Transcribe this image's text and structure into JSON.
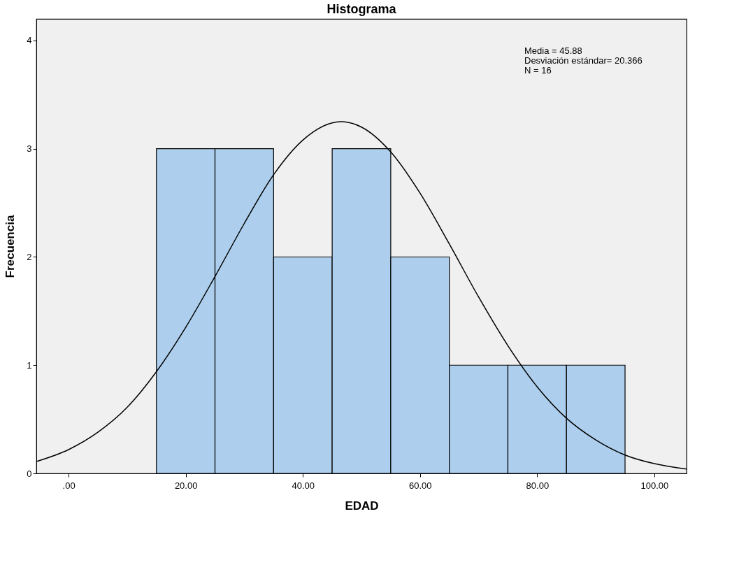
{
  "chart_data": {
    "type": "histogram",
    "title": "Histograma",
    "xlabel": "EDAD",
    "ylabel": "Frecuencia",
    "series": [
      {
        "color": "#adcfed",
        "bins": [
          15,
          25,
          35,
          45,
          55,
          65,
          75,
          85,
          95
        ],
        "values": [
          3,
          3,
          2,
          3,
          2,
          1,
          1,
          1
        ]
      },
      {
        "type": "line",
        "color": "#000000",
        "x": [
          -5.5,
          0,
          5,
          10,
          15,
          20,
          25,
          30,
          35,
          40,
          46.5,
          50,
          55,
          60,
          65,
          70,
          75,
          80,
          85,
          90,
          95,
          100,
          105.5
        ],
        "values": [
          0.11,
          0.22,
          0.38,
          0.61,
          0.94,
          1.35,
          1.82,
          2.31,
          2.76,
          3.08,
          3.25,
          3.2,
          2.97,
          2.59,
          2.12,
          1.63,
          1.18,
          0.8,
          0.51,
          0.31,
          0.17,
          0.09,
          0.04
        ]
      }
    ],
    "xlim": [
      -5.5,
      105.5
    ],
    "xticks": [
      {
        "value": 0,
        "label": ".00"
      },
      {
        "value": 20,
        "label": "20.00"
      },
      {
        "value": 40,
        "label": "40.00"
      },
      {
        "value": 60,
        "label": "60.00"
      },
      {
        "value": 80,
        "label": "80.00"
      },
      {
        "value": 100,
        "label": "100.00"
      }
    ],
    "ylim": [
      0,
      4.2
    ],
    "yticks": [
      0,
      1,
      2,
      3,
      4
    ],
    "grid": false,
    "annotations": [
      "Media = 45.88",
      "Desviación estándar= 20.366",
      "N = 16"
    ]
  }
}
